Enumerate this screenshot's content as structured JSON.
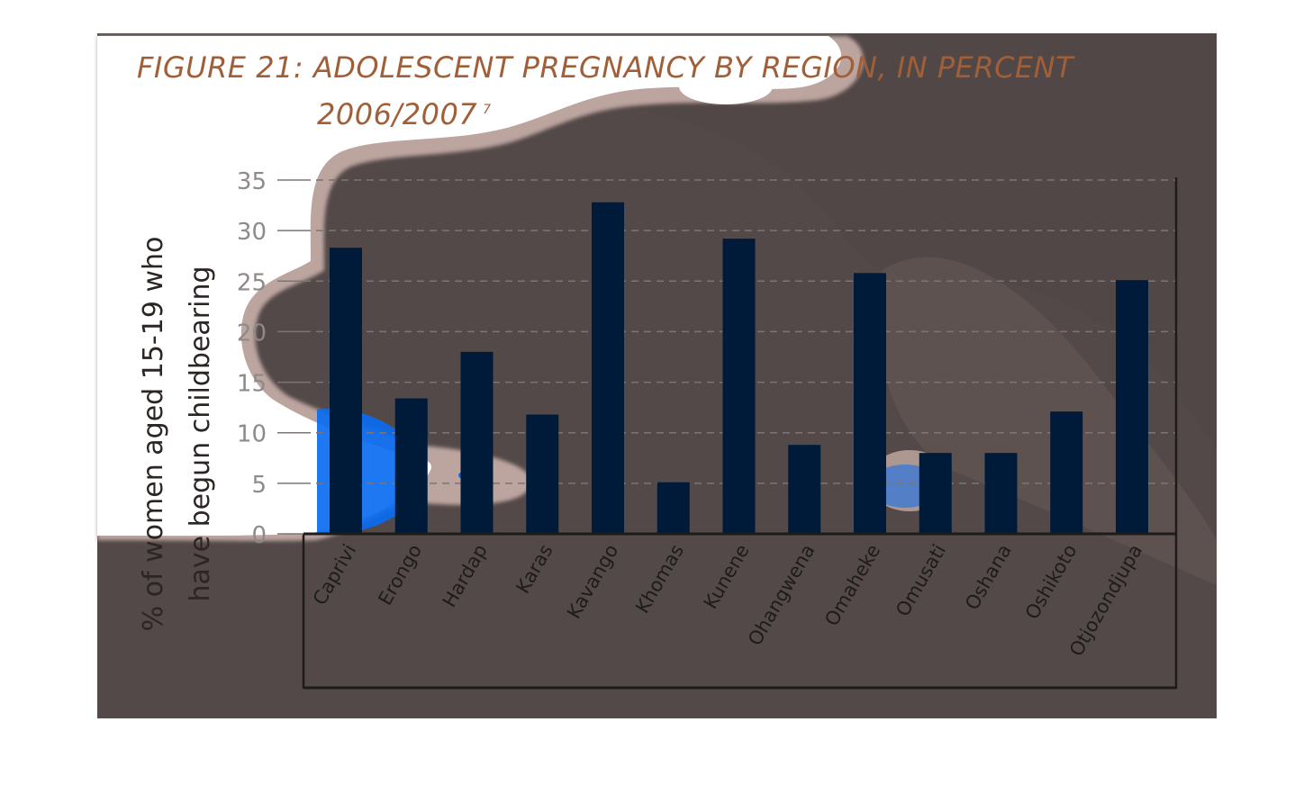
{
  "title": {
    "line1": "FIGURE 21: ADOLESCENT PREGNANCY BY REGION, IN PERCENT",
    "line2": "2006/2007",
    "footnote": "7"
  },
  "colors": {
    "panel": "#514746",
    "bar": "#001b3a",
    "title": "#a05f38",
    "axis": "#1e1b1b",
    "grid": "#7d7575",
    "heat_white": "#ffffff",
    "heat_blue": "#0a6cf0",
    "heat_rose": "#b8a19c"
  },
  "chart_data": {
    "type": "bar",
    "title": "FIGURE 21: ADOLESCENT PREGNANCY BY REGION, IN PERCENT 2006/2007",
    "ylabel_lines": [
      "% of women aged 15-19 who",
      "have begun childbearing"
    ],
    "xlabel": "",
    "categories": [
      "Caprivi",
      "Erongo",
      "Hardap",
      "Karas",
      "Kavango",
      "Khomas",
      "Kunene",
      "Ohangwena",
      "Omaheke",
      "Omusati",
      "Oshana",
      "Oshikoto",
      "Otjozondjupa"
    ],
    "values": [
      28.3,
      13.4,
      18.0,
      11.8,
      32.8,
      5.1,
      29.2,
      8.8,
      25.8,
      8.0,
      8.0,
      12.1,
      25.1
    ],
    "ylim": [
      0,
      35
    ],
    "yticks": [
      0,
      5,
      10,
      15,
      20,
      25,
      30,
      35
    ],
    "grid": true,
    "legend": "none"
  }
}
